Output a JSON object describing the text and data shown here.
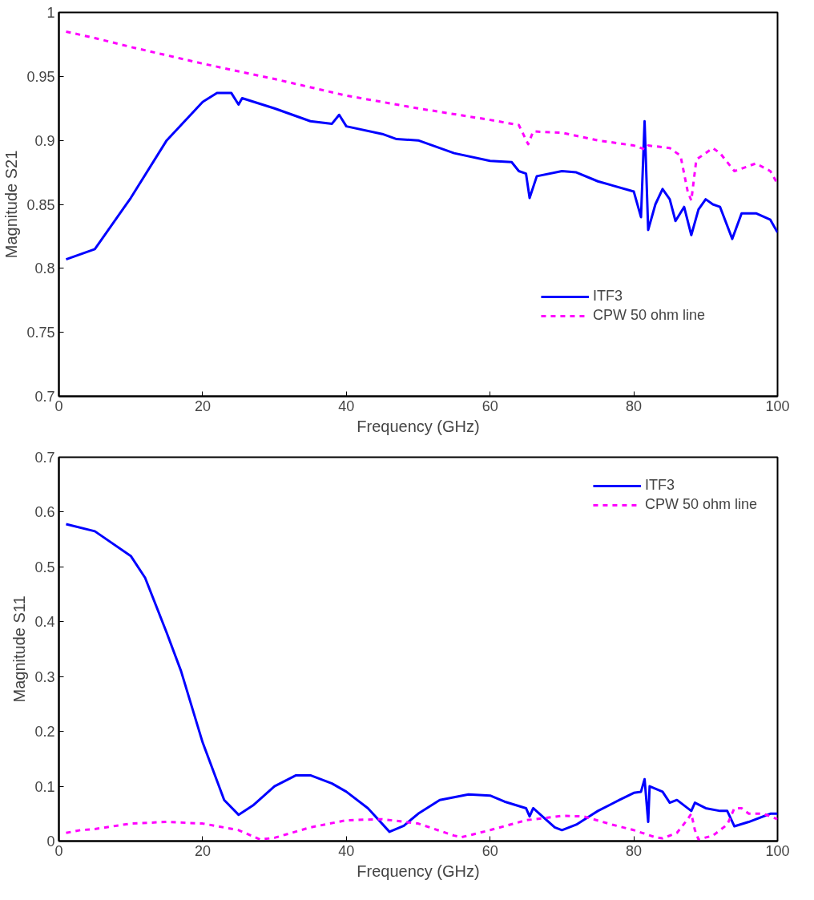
{
  "chart_data": [
    {
      "type": "line",
      "xlabel": "Frequency (GHz)",
      "ylabel": "Magnitude S21",
      "xlim": [
        0,
        100
      ],
      "ylim": [
        0.7,
        1
      ],
      "xticks": [
        0,
        20,
        40,
        60,
        80,
        100
      ],
      "yticks": [
        0.7,
        0.75,
        0.8,
        0.85,
        0.9,
        0.95,
        1
      ],
      "grid": false,
      "legend": "bottom right",
      "series": [
        {
          "name": "ITF3",
          "color": "#0000ff",
          "line_style": "solid",
          "x": [
            1,
            5,
            10,
            15,
            20,
            22,
            24,
            25,
            25.5,
            30,
            35,
            38,
            39,
            40,
            45,
            47,
            50,
            55,
            60,
            63,
            64,
            65,
            65.5,
            66.5,
            70,
            72,
            75,
            80,
            81,
            81.5,
            82,
            83,
            84,
            85,
            85.8,
            87,
            88,
            89,
            90,
            91,
            92,
            93.7,
            95,
            97,
            99,
            100
          ],
          "values": [
            0.807,
            0.815,
            0.855,
            0.9,
            0.93,
            0.937,
            0.937,
            0.928,
            0.933,
            0.925,
            0.915,
            0.913,
            0.92,
            0.911,
            0.905,
            0.901,
            0.9,
            0.89,
            0.884,
            0.883,
            0.876,
            0.874,
            0.855,
            0.872,
            0.876,
            0.875,
            0.868,
            0.86,
            0.84,
            0.915,
            0.83,
            0.85,
            0.862,
            0.854,
            0.837,
            0.848,
            0.826,
            0.846,
            0.854,
            0.85,
            0.848,
            0.823,
            0.843,
            0.843,
            0.838,
            0.828
          ]
        },
        {
          "name": "CPW 50 ohm line",
          "color": "#ff00ff",
          "line_style": "dashed",
          "x": [
            1,
            5,
            10,
            20,
            30,
            40,
            50,
            60,
            64,
            65.3,
            66,
            70,
            75,
            80,
            81.5,
            82,
            85,
            86.5,
            87.5,
            88,
            88.7,
            91,
            92,
            94,
            95,
            97,
            99,
            100
          ],
          "values": [
            0.985,
            0.98,
            0.973,
            0.96,
            0.948,
            0.935,
            0.925,
            0.916,
            0.912,
            0.897,
            0.907,
            0.906,
            0.9,
            0.896,
            0.893,
            0.896,
            0.894,
            0.888,
            0.86,
            0.853,
            0.885,
            0.894,
            0.89,
            0.876,
            0.878,
            0.882,
            0.876,
            0.866
          ]
        }
      ]
    },
    {
      "type": "line",
      "xlabel": "Frequency (GHz)",
      "ylabel": "Magnitude S11",
      "xlim": [
        0,
        100
      ],
      "ylim": [
        0,
        0.7
      ],
      "xticks": [
        0,
        20,
        40,
        60,
        80,
        100
      ],
      "yticks": [
        0,
        0.1,
        0.2,
        0.3,
        0.4,
        0.5,
        0.6,
        0.7
      ],
      "grid": false,
      "legend": "top right",
      "series": [
        {
          "name": "ITF3",
          "color": "#0000ff",
          "line_style": "solid",
          "x": [
            1,
            5,
            10,
            12,
            15,
            17,
            20,
            22,
            23,
            25,
            27,
            30,
            33,
            35,
            38,
            40,
            43,
            46,
            48,
            50,
            53,
            57,
            60,
            62,
            65,
            65.5,
            66,
            69,
            70,
            72,
            75,
            78,
            80,
            81,
            81.5,
            82,
            82.2,
            84,
            85,
            86,
            88,
            88.5,
            90,
            92,
            93,
            94,
            96,
            99,
            100
          ],
          "values": [
            0.578,
            0.565,
            0.52,
            0.48,
            0.38,
            0.31,
            0.18,
            0.11,
            0.075,
            0.048,
            0.065,
            0.1,
            0.12,
            0.12,
            0.105,
            0.09,
            0.06,
            0.017,
            0.028,
            0.05,
            0.075,
            0.085,
            0.083,
            0.072,
            0.06,
            0.045,
            0.06,
            0.025,
            0.02,
            0.03,
            0.055,
            0.075,
            0.088,
            0.09,
            0.113,
            0.035,
            0.1,
            0.09,
            0.07,
            0.075,
            0.055,
            0.07,
            0.06,
            0.055,
            0.055,
            0.027,
            0.035,
            0.05,
            0.05
          ]
        },
        {
          "name": "CPW 50 ohm line",
          "color": "#ff00ff",
          "line_style": "dashed",
          "x": [
            1,
            3,
            5,
            10,
            15,
            20,
            25,
            28,
            30,
            35,
            40,
            45,
            50,
            55,
            56,
            60,
            65,
            70,
            73,
            77,
            80,
            83,
            84,
            86,
            87.5,
            88,
            88.5,
            89,
            91,
            93,
            94,
            95,
            96,
            98,
            100
          ],
          "values": [
            0.015,
            0.02,
            0.022,
            0.032,
            0.035,
            0.032,
            0.02,
            0.003,
            0.006,
            0.025,
            0.038,
            0.04,
            0.032,
            0.01,
            0.007,
            0.02,
            0.038,
            0.046,
            0.045,
            0.03,
            0.02,
            0.007,
            0.005,
            0.015,
            0.04,
            0.05,
            0.02,
            0.003,
            0.01,
            0.03,
            0.06,
            0.06,
            0.05,
            0.05,
            0.04
          ]
        }
      ]
    }
  ]
}
